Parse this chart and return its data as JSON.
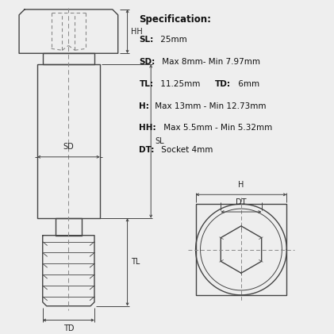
{
  "bg_color": "#eeeeee",
  "line_color": "#444444",
  "dash_color": "#888888",
  "text_color": "#222222",
  "spec_title": "Specification:",
  "spec_lines": [
    [
      [
        "SL:",
        true
      ],
      [
        " 25mm",
        false
      ]
    ],
    [
      [
        "SD:",
        true
      ],
      [
        " Max 8mm- Min 7.97mm",
        false
      ]
    ],
    [
      [
        "TL:",
        true
      ],
      [
        " 11.25mm ",
        false
      ],
      [
        "TD:",
        true
      ],
      [
        " 6mm",
        false
      ]
    ],
    [
      [
        "H:",
        true
      ],
      [
        " Max 13mm - Min 12.73mm",
        false
      ]
    ],
    [
      [
        "HH:",
        true
      ],
      [
        " Max 5.5mm - Min 5.32mm",
        false
      ]
    ],
    [
      [
        "DT:",
        true
      ],
      [
        " Socket 4mm",
        false
      ]
    ]
  ],
  "label_fontsize": 7.0,
  "spec_fontsize": 7.5,
  "lw": 1.0,
  "dlw": 0.7
}
